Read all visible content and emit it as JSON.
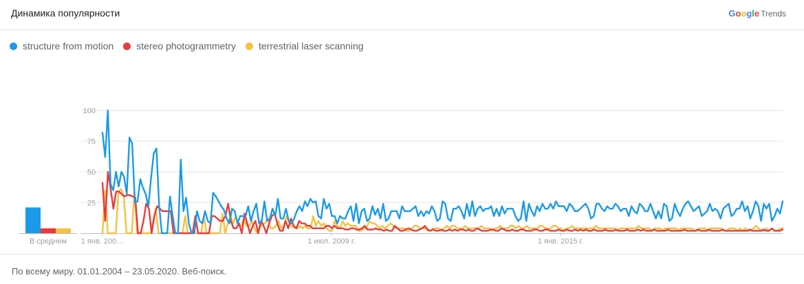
{
  "header": {
    "title": "Динамика популярности",
    "brand": {
      "letters": [
        {
          "ch": "G",
          "color": "#4285F4"
        },
        {
          "ch": "o",
          "color": "#EA4335"
        },
        {
          "ch": "o",
          "color": "#FBBC05"
        },
        {
          "ch": "g",
          "color": "#4285F4"
        },
        {
          "ch": "l",
          "color": "#34A853"
        },
        {
          "ch": "e",
          "color": "#EA4335"
        }
      ],
      "suffix": "Trends"
    }
  },
  "footer": {
    "text": "По всему миру. 01.01.2004 – 23.05.2020. Веб-поиск."
  },
  "chart_data": {
    "type": "line",
    "xlabel": "",
    "ylabel": "",
    "ylim": [
      0,
      100
    ],
    "yticks": [
      25,
      50,
      75,
      100
    ],
    "grid": true,
    "legend_position": "top-left",
    "x_start": "2004-01",
    "x_end": "2020-05",
    "x_tick_labels": [
      {
        "label": "1 янв. 200…",
        "date": "2004-01"
      },
      {
        "label": "1 июл. 2009 г.",
        "date": "2009-07"
      },
      {
        "label": "1 янв. 2015 г.",
        "date": "2015-01"
      }
    ],
    "average_label": "В среднем",
    "series": [
      {
        "name": "structure from motion",
        "color": "#1A9AE8",
        "average": 21,
        "values": [
          82,
          62,
          100,
          40,
          35,
          50,
          38,
          50,
          46,
          32,
          78,
          73,
          25,
          26,
          44,
          37,
          32,
          22,
          45,
          65,
          69,
          22,
          0,
          0,
          0,
          30,
          14,
          0,
          0,
          60,
          18,
          29,
          8,
          0,
          0,
          18,
          10,
          8,
          18,
          10,
          8,
          33,
          30,
          26,
          22,
          19,
          12,
          8,
          20,
          18,
          8,
          14,
          14,
          14,
          22,
          10,
          18,
          24,
          8,
          10,
          26,
          10,
          12,
          20,
          14,
          28,
          12,
          12,
          20,
          10,
          8,
          12,
          18,
          22,
          18,
          26,
          22,
          28,
          25,
          26,
          14,
          12,
          28,
          20,
          24,
          14,
          14,
          8,
          14,
          12,
          12,
          18,
          22,
          10,
          24,
          8,
          18,
          20,
          10,
          12,
          22,
          15,
          20,
          12,
          24,
          10,
          12,
          18,
          18,
          18,
          12,
          22,
          18,
          18,
          18,
          20,
          22,
          14,
          18,
          14,
          18,
          16,
          22,
          18,
          10,
          12,
          26,
          24,
          12,
          10,
          20,
          20,
          22,
          18,
          12,
          24,
          14,
          26,
          14,
          20,
          22,
          18,
          20,
          20,
          22,
          14,
          20,
          14,
          22,
          16,
          20,
          20,
          20,
          14,
          10,
          12,
          26,
          10,
          24,
          18,
          14,
          22,
          18,
          24,
          20,
          20,
          24,
          20,
          26,
          22,
          22,
          22,
          18,
          24,
          22,
          18,
          18,
          20,
          22,
          24,
          20,
          12,
          14,
          24,
          24,
          20,
          18,
          22,
          20,
          20,
          24,
          22,
          18,
          20,
          20,
          14,
          22,
          18,
          16,
          24,
          22,
          18,
          18,
          24,
          18,
          12,
          18,
          12,
          24,
          22,
          10,
          12,
          24,
          18,
          14,
          20,
          24,
          26,
          22,
          18,
          20,
          22,
          14,
          16,
          18,
          24,
          18,
          20,
          18,
          12,
          20,
          22,
          24,
          14,
          16,
          20,
          20,
          26,
          18,
          22,
          12,
          18,
          26,
          22,
          10,
          24,
          20,
          24,
          10,
          14,
          20,
          16,
          26
        ]
      },
      {
        "name": "stereo photogrammetry",
        "color": "#EA3A3A",
        "average": 4,
        "values": [
          41,
          10,
          50,
          36,
          20,
          34,
          34,
          32,
          30,
          31,
          31,
          30,
          29,
          0,
          0,
          10,
          24,
          20,
          0,
          14,
          22,
          20,
          18,
          18,
          18,
          18,
          0,
          0,
          0,
          0,
          0,
          0,
          0,
          0,
          14,
          0,
          0,
          0,
          0,
          0,
          14,
          14,
          12,
          10,
          10,
          14,
          24,
          10,
          4,
          4,
          8,
          0,
          16,
          8,
          0,
          6,
          10,
          0,
          10,
          6,
          0,
          8,
          14,
          16,
          8,
          2,
          2,
          10,
          4,
          12,
          6,
          4,
          10,
          8,
          8,
          6,
          6,
          4,
          4,
          4,
          4,
          4,
          6,
          6,
          4,
          6,
          4,
          4,
          4,
          3,
          3,
          4,
          4,
          3,
          3,
          4,
          6,
          3,
          3,
          3,
          4,
          3,
          3,
          2,
          3,
          2,
          2,
          6,
          4,
          2,
          2,
          3,
          4,
          3,
          2,
          2,
          3,
          4,
          6,
          3,
          2,
          3,
          2,
          2,
          3,
          2,
          2,
          3,
          2,
          3,
          2,
          3,
          3,
          2,
          3,
          2,
          2,
          4,
          3,
          2,
          2,
          2,
          3,
          3,
          2,
          2,
          4,
          3,
          2,
          2,
          3,
          2,
          2,
          3,
          3,
          2,
          2,
          2,
          3,
          3,
          2,
          2,
          3,
          3,
          2,
          2,
          2,
          3,
          2,
          2,
          3,
          2,
          2,
          3,
          2,
          3,
          2,
          3,
          2,
          2,
          3,
          2,
          2,
          2,
          3,
          2,
          2,
          2,
          3,
          2,
          2,
          2,
          3,
          2,
          2,
          2,
          3,
          2,
          3,
          2,
          2,
          2,
          3,
          2,
          2,
          2,
          2,
          3,
          2,
          2,
          2,
          2,
          2,
          3,
          2,
          2,
          2,
          2,
          3,
          2,
          2,
          2,
          3,
          2,
          2,
          2,
          2,
          3,
          2,
          2,
          2,
          2,
          2,
          2,
          2,
          2,
          2,
          3,
          2,
          2,
          2,
          2,
          3,
          2,
          2,
          4,
          2,
          2,
          2,
          3
        ]
      },
      {
        "name": "terrestrial laser scanning",
        "color": "#F6C142",
        "average": 4,
        "values": [
          0,
          35,
          0,
          0,
          0,
          0,
          34,
          36,
          30,
          0,
          0,
          0,
          34,
          0,
          0,
          0,
          0,
          0,
          0,
          10,
          20,
          0,
          0,
          0,
          0,
          0,
          0,
          0,
          0,
          0,
          0,
          14,
          0,
          0,
          0,
          0,
          0,
          0,
          14,
          0,
          0,
          0,
          0,
          0,
          0,
          16,
          0,
          8,
          14,
          8,
          14,
          6,
          6,
          12,
          6,
          6,
          10,
          4,
          0,
          4,
          8,
          8,
          12,
          4,
          4,
          6,
          10,
          4,
          6,
          14,
          8,
          6,
          4,
          4,
          6,
          4,
          6,
          4,
          4,
          14,
          6,
          10,
          6,
          8,
          4,
          2,
          2,
          10,
          6,
          4,
          10,
          6,
          8,
          6,
          6,
          6,
          2,
          2,
          4,
          4,
          10,
          8,
          8,
          6,
          4,
          6,
          4,
          6,
          8,
          6,
          4,
          4,
          4,
          4,
          2,
          2,
          4,
          6,
          6,
          4,
          4,
          4,
          2,
          2,
          4,
          4,
          4,
          2,
          4,
          6,
          4,
          6,
          6,
          4,
          4,
          4,
          6,
          4,
          4,
          4,
          4,
          4,
          6,
          4,
          4,
          4,
          2,
          4,
          4,
          6,
          4,
          4,
          4,
          6,
          6,
          4,
          6,
          4,
          4,
          6,
          4,
          4,
          4,
          4,
          6,
          6,
          4,
          4,
          4,
          6,
          6,
          4,
          4,
          2,
          4,
          4,
          6,
          4,
          4,
          4,
          4,
          4,
          4,
          4,
          4,
          6,
          4,
          4,
          4,
          4,
          4,
          4,
          4,
          2,
          4,
          4,
          4,
          4,
          4,
          4,
          4,
          6,
          4,
          4,
          4,
          4,
          2,
          4,
          4,
          4,
          2,
          4,
          4,
          4,
          4,
          4,
          2,
          4,
          4,
          4,
          4,
          4,
          2,
          2,
          4,
          4,
          4,
          2,
          4,
          4,
          4,
          4,
          4,
          2,
          2,
          4,
          4,
          4,
          2,
          4,
          2,
          4,
          2,
          2,
          4,
          6,
          4,
          2,
          2,
          4,
          2,
          4,
          2,
          2,
          4,
          4
        ]
      }
    ]
  }
}
